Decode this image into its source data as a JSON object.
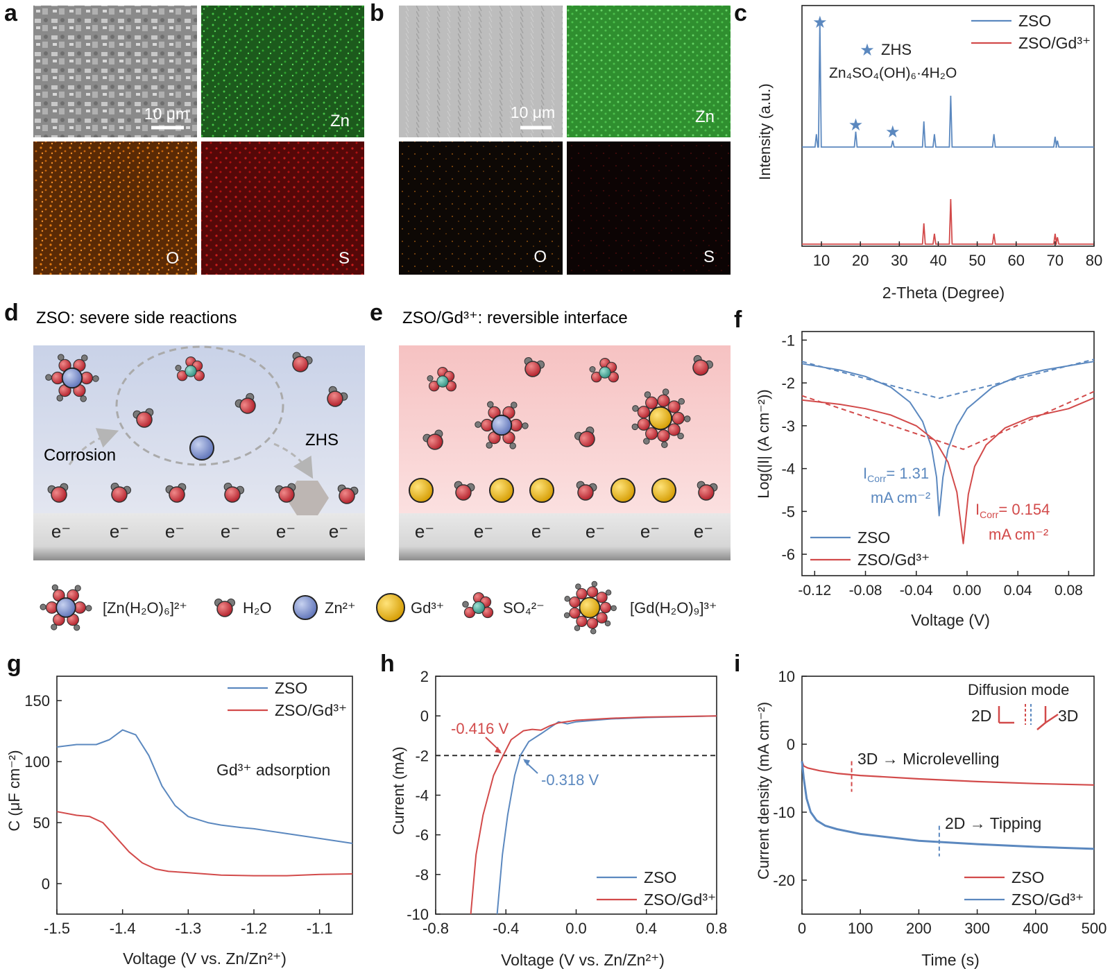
{
  "panel_letters": [
    "a",
    "b",
    "c",
    "d",
    "e",
    "f",
    "g",
    "h",
    "i"
  ],
  "micrographs": {
    "a": {
      "scale_bar": "10 μm",
      "elements": [
        "Zn",
        "O",
        "S"
      ]
    },
    "b": {
      "scale_bar": "10 μm",
      "elements": [
        "Zn",
        "O",
        "S"
      ]
    }
  },
  "schematic": {
    "d_title": "ZSO: severe side reactions",
    "e_title": "ZSO/Gd³⁺: reversible interface",
    "corrosion_label": "Corrosion",
    "zhs_label": "ZHS",
    "electron_label": "e⁻",
    "legend": [
      {
        "label": "[Zn(H₂O)₆]²⁺",
        "icon": "zn-hydrate-icon"
      },
      {
        "label": "H₂O",
        "icon": "water-icon"
      },
      {
        "label": "Zn²⁺",
        "icon": "zn-ion-icon"
      },
      {
        "label": "Gd³⁺",
        "icon": "gd-ion-icon"
      },
      {
        "label": "SO₄²⁻",
        "icon": "sulfate-icon"
      },
      {
        "label": "[Gd(H₂O)₉]³⁺",
        "icon": "gd-hydrate-icon"
      }
    ]
  },
  "colors": {
    "zso": "#5b88bf",
    "zso_gd": "#d24a4a",
    "star": "#5b88bf"
  },
  "chart_data": [
    {
      "panel": "c",
      "type": "line",
      "xlabel": "2-Theta (Degree)",
      "ylabel": "Intensity (a.u.)",
      "xlim": [
        5,
        80
      ],
      "xticks": [
        10,
        20,
        30,
        40,
        50,
        60,
        70,
        80
      ],
      "annotation": {
        "marker": "★",
        "name": "ZHS",
        "formula": "Zn₄SO₄(OH)₆·4H₂O"
      },
      "zhs_star_positions": [
        9.6,
        18.8,
        28.3
      ],
      "series": [
        {
          "name": "ZSO",
          "peaks": [
            [
              8.7,
              0.1
            ],
            [
              9.6,
              1.0
            ],
            [
              18.8,
              0.12
            ],
            [
              28.3,
              0.05
            ],
            [
              36.3,
              0.2
            ],
            [
              39.0,
              0.1
            ],
            [
              43.2,
              0.4
            ],
            [
              54.3,
              0.1
            ],
            [
              70.0,
              0.08
            ],
            [
              70.6,
              0.05
            ]
          ]
        },
        {
          "name": "ZSO/Gd³⁺",
          "peaks": [
            [
              36.3,
              0.3
            ],
            [
              39.0,
              0.15
            ],
            [
              43.2,
              0.65
            ],
            [
              54.3,
              0.15
            ],
            [
              70.0,
              0.15
            ],
            [
              70.6,
              0.1
            ]
          ]
        }
      ]
    },
    {
      "panel": "f",
      "type": "line",
      "xlabel": "Voltage (V)",
      "ylabel": "Log(|I| (A cm⁻²))",
      "xlim": [
        -0.13,
        0.1
      ],
      "ylim": [
        -6.5,
        -0.8
      ],
      "xticks": [
        "-0.12",
        "-0.08",
        "-0.04",
        "0.00",
        "0.04",
        "0.08"
      ],
      "yticks": [
        "-1",
        "-2",
        "-3",
        "-4",
        "-5",
        "-6"
      ],
      "series": [
        {
          "name": "ZSO",
          "ecorr": -0.022,
          "min_log": -5.1,
          "points": [
            [
              -0.13,
              -1.55
            ],
            [
              -0.1,
              -1.7
            ],
            [
              -0.08,
              -1.85
            ],
            [
              -0.06,
              -2.1
            ],
            [
              -0.045,
              -2.45
            ],
            [
              -0.035,
              -2.9
            ],
            [
              -0.028,
              -3.5
            ],
            [
              -0.024,
              -4.2
            ],
            [
              -0.022,
              -5.1
            ],
            [
              -0.019,
              -4.2
            ],
            [
              -0.015,
              -3.55
            ],
            [
              -0.008,
              -3.0
            ],
            [
              0.0,
              -2.6
            ],
            [
              0.02,
              -2.1
            ],
            [
              0.04,
              -1.85
            ],
            [
              0.06,
              -1.7
            ],
            [
              0.08,
              -1.6
            ],
            [
              0.1,
              -1.5
            ]
          ],
          "tafel": [
            [
              -0.13,
              -1.5
            ],
            [
              -0.022,
              -2.36
            ],
            [
              0.1,
              -1.45
            ]
          ]
        },
        {
          "name": "ZSO/Gd³⁺",
          "ecorr": -0.003,
          "min_log": -5.75,
          "points": [
            [
              -0.13,
              -2.4
            ],
            [
              -0.1,
              -2.5
            ],
            [
              -0.08,
              -2.6
            ],
            [
              -0.06,
              -2.75
            ],
            [
              -0.04,
              -3.0
            ],
            [
              -0.025,
              -3.35
            ],
            [
              -0.015,
              -3.85
            ],
            [
              -0.008,
              -4.55
            ],
            [
              -0.003,
              -5.75
            ],
            [
              0.001,
              -4.6
            ],
            [
              0.006,
              -3.95
            ],
            [
              0.015,
              -3.45
            ],
            [
              0.03,
              -3.05
            ],
            [
              0.05,
              -2.8
            ],
            [
              0.08,
              -2.6
            ],
            [
              0.1,
              -2.35
            ]
          ],
          "tafel": [
            [
              -0.13,
              -2.3
            ],
            [
              -0.003,
              -3.55
            ],
            [
              0.1,
              -2.2
            ]
          ]
        }
      ],
      "annotations": [
        {
          "series": "ZSO",
          "line1": "I",
          "sub": "Corr",
          "line1_rest": "= 1.31",
          "line2": "mA cm⁻²"
        },
        {
          "series": "ZSO/Gd³⁺",
          "line1": "I",
          "sub": "Corr",
          "line1_rest": "= 0.154",
          "line2": "mA cm⁻²"
        }
      ]
    },
    {
      "panel": "g",
      "type": "line",
      "xlabel": "Voltage (V vs. Zn/Zn²⁺)",
      "ylabel": "C (μF cm⁻²)",
      "xlim": [
        -1.5,
        -1.05
      ],
      "ylim": [
        -25,
        170
      ],
      "xticks": [
        "-1.5",
        "-1.4",
        "-1.3",
        "-1.2",
        "-1.1"
      ],
      "yticks": [
        "0",
        "50",
        "100",
        "150"
      ],
      "annotation": "Gd³⁺ adsorption",
      "series": [
        {
          "name": "ZSO",
          "points": [
            [
              -1.5,
              112
            ],
            [
              -1.47,
              114
            ],
            [
              -1.44,
              114
            ],
            [
              -1.42,
              118
            ],
            [
              -1.4,
              126
            ],
            [
              -1.38,
              122
            ],
            [
              -1.36,
              105
            ],
            [
              -1.34,
              80
            ],
            [
              -1.32,
              64
            ],
            [
              -1.3,
              55
            ],
            [
              -1.27,
              50
            ],
            [
              -1.25,
              48
            ],
            [
              -1.22,
              46
            ],
            [
              -1.2,
              45
            ],
            [
              -1.15,
              41
            ],
            [
              -1.1,
              37
            ],
            [
              -1.05,
              33
            ]
          ]
        },
        {
          "name": "ZSO/Gd³⁺",
          "points": [
            [
              -1.5,
              59
            ],
            [
              -1.47,
              56
            ],
            [
              -1.45,
              55
            ],
            [
              -1.43,
              50
            ],
            [
              -1.41,
              38
            ],
            [
              -1.39,
              26
            ],
            [
              -1.37,
              17
            ],
            [
              -1.35,
              12
            ],
            [
              -1.33,
              10
            ],
            [
              -1.3,
              9
            ],
            [
              -1.25,
              7
            ],
            [
              -1.2,
              6.5
            ],
            [
              -1.15,
              6.5
            ],
            [
              -1.1,
              7.5
            ],
            [
              -1.05,
              8
            ]
          ]
        }
      ]
    },
    {
      "panel": "h",
      "type": "line",
      "xlabel": "Voltage (V vs. Zn/Zn²⁺)",
      "ylabel": "Current (mA)",
      "xlim": [
        -0.8,
        0.8
      ],
      "ylim": [
        -10,
        2
      ],
      "xticks": [
        "-0.8",
        "-0.4",
        "0.0",
        "0.4",
        "0.8"
      ],
      "yticks": [
        "2",
        "0",
        "-2",
        "-4",
        "-6",
        "-8",
        "-10"
      ],
      "reference_line": -2,
      "annotations": [
        {
          "series": "ZSO/Gd³⁺",
          "label": "-0.416 V",
          "x": -0.416
        },
        {
          "series": "ZSO",
          "label": "-0.318 V",
          "x": -0.318
        }
      ],
      "series": [
        {
          "name": "ZSO",
          "points": [
            [
              -0.45,
              -10
            ],
            [
              -0.42,
              -7
            ],
            [
              -0.39,
              -5
            ],
            [
              -0.35,
              -3
            ],
            [
              -0.318,
              -2
            ],
            [
              -0.27,
              -1.3
            ],
            [
              -0.2,
              -0.9
            ],
            [
              -0.15,
              -0.6
            ],
            [
              -0.1,
              -0.3
            ],
            [
              -0.05,
              -0.4
            ],
            [
              0.0,
              -0.3
            ],
            [
              0.2,
              -0.15
            ],
            [
              0.4,
              -0.08
            ],
            [
              0.8,
              0.0
            ]
          ]
        },
        {
          "name": "ZSO/Gd³⁺",
          "points": [
            [
              -0.6,
              -10
            ],
            [
              -0.57,
              -7
            ],
            [
              -0.53,
              -5
            ],
            [
              -0.47,
              -3
            ],
            [
              -0.416,
              -2
            ],
            [
              -0.37,
              -1.2
            ],
            [
              -0.3,
              -0.75
            ],
            [
              -0.25,
              -0.68
            ],
            [
              -0.2,
              -0.72
            ],
            [
              -0.15,
              -0.5
            ],
            [
              -0.1,
              -0.35
            ],
            [
              0.0,
              -0.22
            ],
            [
              0.2,
              -0.12
            ],
            [
              0.4,
              -0.06
            ],
            [
              0.8,
              0.0
            ]
          ]
        }
      ]
    },
    {
      "panel": "i",
      "type": "line",
      "xlabel": "Time (s)",
      "ylabel": "Current density (mA cm⁻²)",
      "xlim": [
        0,
        500
      ],
      "ylim": [
        -25,
        10
      ],
      "xticks": [
        "0",
        "100",
        "200",
        "300",
        "400",
        "500"
      ],
      "yticks": [
        "10",
        "0",
        "-10",
        "-20"
      ],
      "inset_title": "Diffusion mode",
      "inset_left": "2D",
      "inset_right": "3D",
      "annotations": [
        {
          "series": "ZSO/Gd³⁺",
          "label": "3D → Microlevelling",
          "x": 85
        },
        {
          "series": "ZSO",
          "label": "2D → Tipping",
          "x": 235
        }
      ],
      "series": [
        {
          "name": "ZSO",
          "points": [
            [
              0,
              -2.5
            ],
            [
              3,
              -3.2
            ],
            [
              10,
              -3.5
            ],
            [
              30,
              -3.9
            ],
            [
              60,
              -4.3
            ],
            [
              100,
              -4.6
            ],
            [
              200,
              -5.1
            ],
            [
              300,
              -5.5
            ],
            [
              400,
              -5.8
            ],
            [
              500,
              -6.0
            ]
          ]
        },
        {
          "name": "ZSO/Gd³⁺",
          "points": [
            [
              0,
              -2.5
            ],
            [
              3,
              -5
            ],
            [
              8,
              -8
            ],
            [
              15,
              -10
            ],
            [
              25,
              -11.2
            ],
            [
              40,
              -12
            ],
            [
              60,
              -12.5
            ],
            [
              100,
              -13.2
            ],
            [
              200,
              -14.2
            ],
            [
              300,
              -14.7
            ],
            [
              400,
              -15.1
            ],
            [
              500,
              -15.4
            ]
          ]
        }
      ]
    }
  ]
}
